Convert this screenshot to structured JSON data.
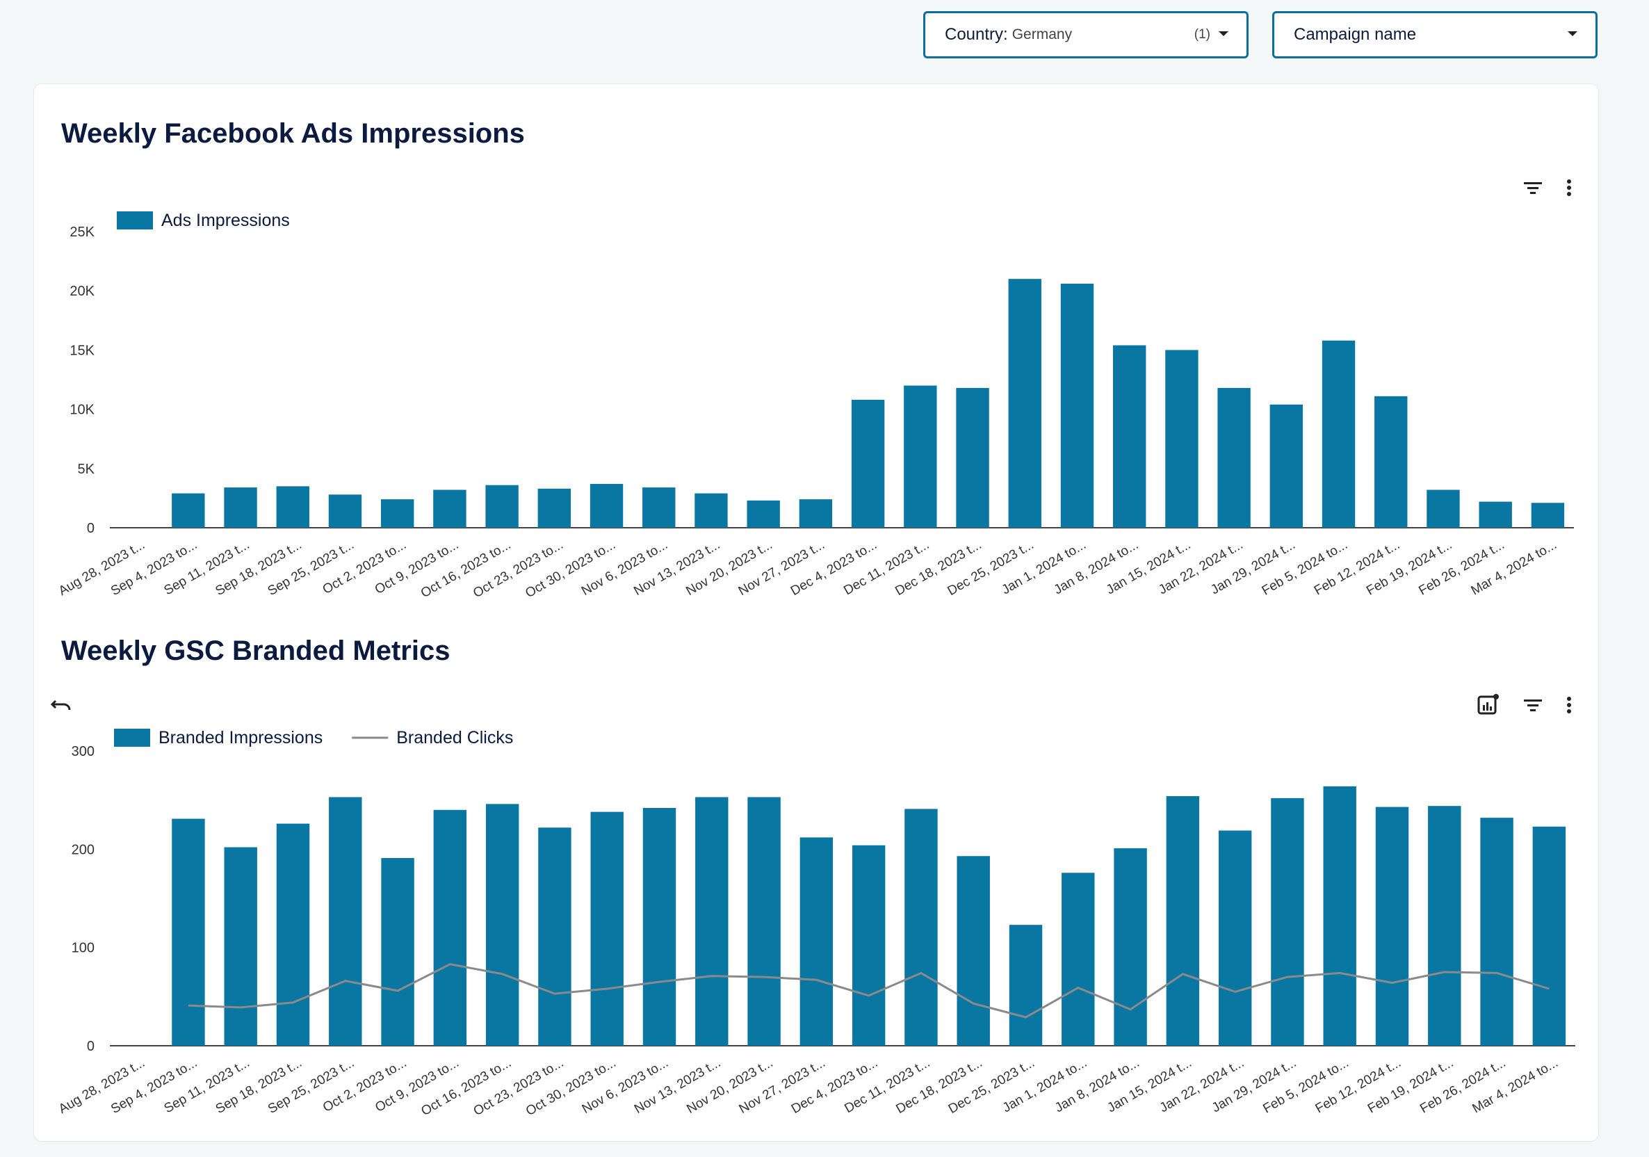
{
  "filters": {
    "country": {
      "label": "Country",
      "value": "Germany",
      "count": "(1)"
    },
    "campaign": {
      "label": "Campaign name"
    }
  },
  "colors": {
    "bar": "#0a77a3",
    "line": "#8a8a8a",
    "axis": "#444444"
  },
  "icons": [
    "filter-icon",
    "more-vert-icon",
    "undo-icon",
    "chart-insight-icon"
  ],
  "chart_data": [
    {
      "type": "bar",
      "title": "Weekly Facebook Ads Impressions",
      "categories": [
        "Aug 28, 2023 t...",
        "Sep 4, 2023 to...",
        "Sep 11, 2023 t...",
        "Sep 18, 2023 t...",
        "Sep 25, 2023 t...",
        "Oct 2, 2023 to...",
        "Oct 9, 2023 to...",
        "Oct 16, 2023 to...",
        "Oct 23, 2023 to...",
        "Oct 30, 2023 to...",
        "Nov 6, 2023 to...",
        "Nov 13, 2023 t...",
        "Nov 20, 2023 t...",
        "Nov 27, 2023 t...",
        "Dec 4, 2023 to...",
        "Dec 11, 2023 t...",
        "Dec 18, 2023 t...",
        "Dec 25, 2023 t...",
        "Jan 1, 2024 to...",
        "Jan 8, 2024 to...",
        "Jan 15, 2024 t...",
        "Jan 22, 2024 t...",
        "Jan 29, 2024 t...",
        "Feb 5, 2024 to...",
        "Feb 12, 2024 t...",
        "Feb 19, 2024 t...",
        "Feb 26, 2024 t...",
        "Mar 4, 2024 to..."
      ],
      "series": [
        {
          "name": "Ads Impressions",
          "values": [
            0,
            2900,
            3400,
            3500,
            2800,
            2400,
            3200,
            3600,
            3300,
            3700,
            3400,
            2900,
            2300,
            2400,
            10800,
            12000,
            11800,
            21000,
            20600,
            15400,
            15000,
            11800,
            10400,
            15800,
            11100,
            3200,
            2200,
            2100
          ]
        }
      ],
      "yticks": [
        "0",
        "5K",
        "10K",
        "15K",
        "20K",
        "25K"
      ],
      "ylim": [
        0,
        25000
      ],
      "legend": "top-left"
    },
    {
      "type": "bar",
      "title": "Weekly GSC Branded Metrics",
      "categories": [
        "Aug 28, 2023 t...",
        "Sep 4, 2023 to...",
        "Sep 11, 2023 t...",
        "Sep 18, 2023 t...",
        "Sep 25, 2023 t...",
        "Oct 2, 2023 to...",
        "Oct 9, 2023 to...",
        "Oct 16, 2023 to...",
        "Oct 23, 2023 to...",
        "Oct 30, 2023 to...",
        "Nov 6, 2023 to...",
        "Nov 13, 2023 t...",
        "Nov 20, 2023 t...",
        "Nov 27, 2023 t...",
        "Dec 4, 2023 to...",
        "Dec 11, 2023 t...",
        "Dec 18, 2023 t...",
        "Dec 25, 2023 t...",
        "Jan 1, 2024 to...",
        "Jan 8, 2024 to...",
        "Jan 15, 2024 t...",
        "Jan 22, 2024 t...",
        "Jan 29, 2024 t...",
        "Feb 5, 2024 to...",
        "Feb 12, 2024 t...",
        "Feb 19, 2024 t...",
        "Feb 26, 2024 t...",
        "Mar 4, 2024 to..."
      ],
      "series": [
        {
          "name": "Branded Impressions",
          "type": "bar",
          "values": [
            0,
            231,
            202,
            226,
            253,
            191,
            240,
            246,
            222,
            238,
            242,
            253,
            253,
            212,
            204,
            241,
            193,
            123,
            176,
            201,
            254,
            219,
            252,
            264,
            243,
            244,
            232,
            223
          ]
        },
        {
          "name": "Branded Clicks",
          "type": "line",
          "values": [
            null,
            41,
            39,
            44,
            66,
            56,
            83,
            73,
            53,
            58,
            65,
            71,
            70,
            67,
            51,
            74,
            43,
            29,
            59,
            37,
            73,
            55,
            70,
            74,
            64,
            75,
            74,
            58
          ]
        }
      ],
      "yticks": [
        "0",
        "100",
        "200",
        "300"
      ],
      "ylim": [
        0,
        300
      ],
      "legend": "top-left"
    }
  ]
}
